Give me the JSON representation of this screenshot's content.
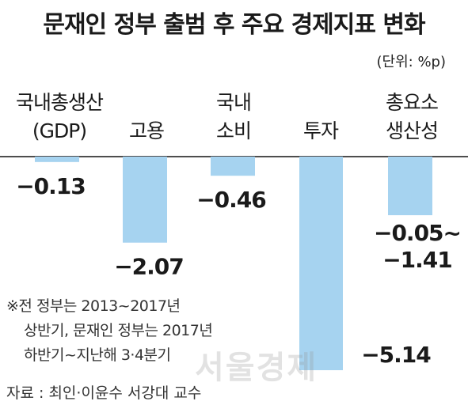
{
  "title": "문재인 정부 출범 후 주요 경제지표 변화",
  "unit": "(단위: %p)",
  "footnote": {
    "line1": "※전 정부는 2013~2017년",
    "line2": "상반기, 문재인 정부는 2017년",
    "line3": "하반기~지난해 3·4분기"
  },
  "source": "자료 : 최인·이윤수 서강대 교수",
  "watermark": "서울경제",
  "colors": {
    "bar": "#a6d3f0",
    "axis": "#4d4d4d"
  },
  "chart_data": {
    "type": "bar",
    "categories": [
      {
        "lines": [
          "국내총생산",
          "(GDP)"
        ]
      },
      {
        "lines": [
          "고용"
        ]
      },
      {
        "lines": [
          "국내",
          "소비"
        ]
      },
      {
        "lines": [
          "투자"
        ]
      },
      {
        "lines": [
          "총요소",
          "생산성"
        ]
      }
    ],
    "values": [
      -0.13,
      -2.07,
      -0.46,
      -5.14,
      [
        -0.05,
        -1.41
      ]
    ],
    "value_labels": [
      [
        "−0.13"
      ],
      [
        "−2.07"
      ],
      [
        "−0.46"
      ],
      [
        "−5.14"
      ],
      [
        "−0.05~",
        "−1.41"
      ]
    ],
    "bar_color": "#a6d3f0"
  }
}
